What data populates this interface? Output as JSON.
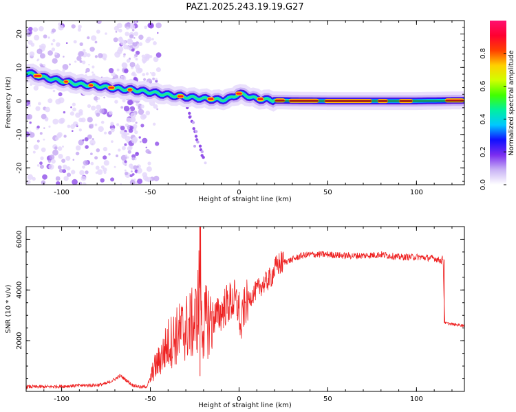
{
  "figure_title": "PAZ1.2025.243.19.19.G27",
  "chart_data": [
    {
      "type": "heatmap",
      "title": "PAZ1.2025.243.19.19.G27",
      "xlabel": "Height of straight line (km)",
      "ylabel": "Frequency (Hz)",
      "xlim": [
        -120,
        127
      ],
      "ylim": [
        -25,
        24
      ],
      "xticks": [
        -100,
        -50,
        0,
        50,
        100
      ],
      "yticks": [
        -20,
        -10,
        0,
        10,
        20
      ],
      "xtick_labels": [
        "-100",
        "-50",
        "0",
        "50",
        "100"
      ],
      "ytick_labels": [
        "-20",
        "-10",
        "0",
        "10",
        "20"
      ],
      "ridge": {
        "x": [
          -120,
          -110,
          -100,
          -90,
          -80,
          -70,
          -60,
          -50,
          -40,
          -30,
          -20,
          -10,
          -5,
          0,
          5,
          10,
          20,
          30,
          50,
          80,
          100,
          127
        ],
        "y": [
          8.5,
          7,
          6,
          5,
          4.5,
          3.8,
          3.3,
          2.6,
          1.8,
          1.2,
          0.7,
          0.3,
          0.8,
          2.2,
          1.5,
          0.6,
          0.2,
          0.1,
          0.0,
          0.0,
          0.0,
          0.2
        ]
      },
      "colorbar": {
        "label": "Normalized spectral amplitude",
        "range": [
          0,
          1
        ],
        "ticks": [
          0.0,
          0.2,
          0.4,
          0.6,
          0.8
        ],
        "tick_labels": [
          "0.0",
          "0.2",
          "0.4",
          "0.6",
          "0.8"
        ],
        "colors": [
          "#ffffff",
          "#c9b3f5",
          "#7a2cf0",
          "#1010ff",
          "#00c8ff",
          "#00f0a0",
          "#40ff00",
          "#d0ff00",
          "#ffd000",
          "#ff4000",
          "#ff0030",
          "#ff1070"
        ]
      }
    },
    {
      "type": "line",
      "title": "",
      "xlabel": "Height of straight line (km)",
      "ylabel": "SNR (10 * v/v)",
      "xlim": [
        -120,
        127
      ],
      "ylim": [
        0,
        6500
      ],
      "xticks": [
        -100,
        -50,
        0,
        50,
        100
      ],
      "yticks": [
        2000,
        4000,
        6000
      ],
      "xtick_labels": [
        "-100",
        "-50",
        "0",
        "50",
        "100"
      ],
      "ytick_labels": [
        "2000",
        "4000",
        "6000"
      ],
      "color": "#ee2222",
      "series": [
        {
          "name": "SNR",
          "x": [
            -120,
            -110,
            -100,
            -90,
            -80,
            -75,
            -70,
            -67,
            -65,
            -60,
            -55,
            -52,
            -50,
            -48,
            -45,
            -42,
            -40,
            -38,
            -35,
            -32,
            -30,
            -28,
            -25,
            -23,
            -22,
            -21,
            -20,
            -18,
            -15,
            -12,
            -10,
            -8,
            -5,
            -3,
            -1,
            0,
            0.5,
            1,
            2,
            4,
            6,
            8,
            10,
            12,
            15,
            18,
            20,
            22,
            25,
            28,
            30,
            35,
            40,
            50,
            60,
            70,
            80,
            90,
            100,
            110,
            114,
            115,
            115.5,
            116,
            120,
            127
          ],
          "y": [
            180,
            180,
            200,
            230,
            250,
            300,
            480,
            620,
            520,
            250,
            160,
            200,
            500,
            900,
            1200,
            1600,
            1900,
            2000,
            2200,
            2400,
            2500,
            2600,
            2700,
            3300,
            5800,
            2600,
            2600,
            2800,
            2900,
            3000,
            3100,
            3350,
            3500,
            3600,
            3400,
            3300,
            2700,
            2200,
            3100,
            3500,
            3650,
            3850,
            4000,
            4150,
            4300,
            4500,
            4800,
            5000,
            5100,
            5150,
            5200,
            5350,
            5400,
            5400,
            5350,
            5350,
            5400,
            5300,
            5300,
            5250,
            5150,
            5300,
            3600,
            2700,
            2650,
            2600
          ]
        }
      ]
    }
  ]
}
